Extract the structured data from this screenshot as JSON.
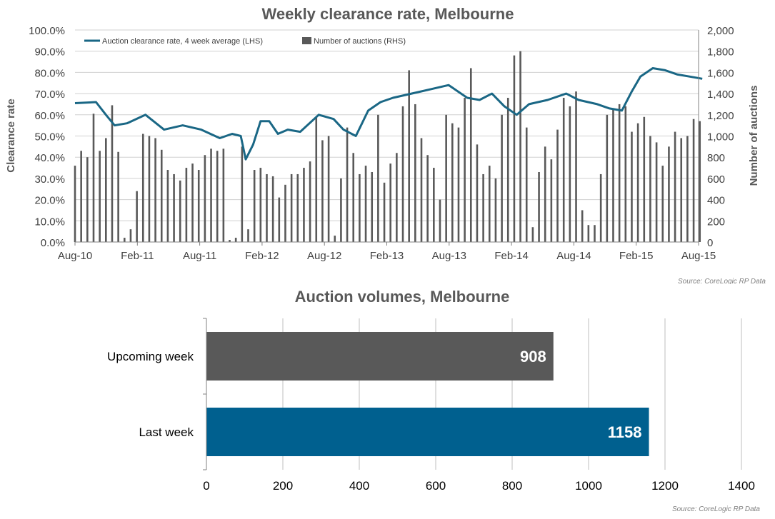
{
  "chart_data": [
    {
      "type": "bar",
      "title": "Weekly clearance rate, Melbourne",
      "ylabel": "Clearance rate",
      "y2label": "Number of auctions",
      "ylim": [
        0,
        100
      ],
      "y2lim": [
        0,
        2000
      ],
      "y_ticks": [
        "0.0%",
        "10.0%",
        "20.0%",
        "30.0%",
        "40.0%",
        "50.0%",
        "60.0%",
        "70.0%",
        "80.0%",
        "90.0%",
        "100.0%"
      ],
      "y2_ticks": [
        "0",
        "200",
        "400",
        "600",
        "800",
        "1,000",
        "1,200",
        "1,400",
        "1,600",
        "1,800",
        "2,000"
      ],
      "x_ticks": [
        "Aug-10",
        "Feb-11",
        "Aug-11",
        "Feb-12",
        "Aug-12",
        "Feb-13",
        "Aug-13",
        "Feb-14",
        "Aug-14",
        "Feb-15",
        "Aug-15"
      ],
      "grid": true,
      "legend": "top-left",
      "source": "Source: CoreLogic RP Data",
      "colors": {
        "line": "#1a6785",
        "bars": "#595959"
      },
      "series": [
        {
          "name": "Auction clearance rate, 4 week average (LHS)",
          "type": "line",
          "axis": "left",
          "x": [
            2010.58,
            2010.75,
            2010.83,
            2010.9,
            2011.0,
            2011.15,
            2011.3,
            2011.45,
            2011.6,
            2011.75,
            2011.85,
            2011.92,
            2011.96,
            2012.02,
            2012.08,
            2012.15,
            2012.22,
            2012.3,
            2012.4,
            2012.55,
            2012.67,
            2012.75,
            2012.85,
            2012.95,
            2013.05,
            2013.15,
            2013.3,
            2013.45,
            2013.6,
            2013.75,
            2013.85,
            2013.95,
            2014.05,
            2014.15,
            2014.25,
            2014.4,
            2014.55,
            2014.65,
            2014.8,
            2014.9,
            2015.0,
            2015.08,
            2015.15,
            2015.25,
            2015.35,
            2015.45,
            2015.55,
            2015.65
          ],
          "values": [
            65.5,
            66,
            60,
            55,
            56,
            60,
            53,
            55,
            53,
            49,
            51,
            50,
            39,
            46,
            57,
            57,
            51,
            53,
            52,
            60,
            58,
            53,
            50,
            62,
            66,
            68,
            70,
            72,
            74,
            68,
            67,
            70,
            64,
            60,
            65,
            67,
            70,
            67,
            65,
            63,
            62,
            71,
            78,
            82,
            81,
            79,
            78,
            77
          ]
        },
        {
          "name": "Number of auctions (RHS)",
          "type": "bar",
          "axis": "right",
          "x": [
            2010.58,
            2010.63,
            2010.68,
            2010.73,
            2010.78,
            2010.83,
            2010.88,
            2010.93,
            2010.98,
            2011.03,
            2011.08,
            2011.13,
            2011.18,
            2011.23,
            2011.28,
            2011.33,
            2011.38,
            2011.43,
            2011.48,
            2011.53,
            2011.58,
            2011.63,
            2011.68,
            2011.73,
            2011.78,
            2011.83,
            2011.88,
            2011.93,
            2011.98,
            2012.03,
            2012.08,
            2012.13,
            2012.18,
            2012.23,
            2012.28,
            2012.33,
            2012.38,
            2012.43,
            2012.48,
            2012.53,
            2012.58,
            2012.63,
            2012.68,
            2012.73,
            2012.78,
            2012.83,
            2012.88,
            2012.93,
            2012.98,
            2013.03,
            2013.08,
            2013.13,
            2013.18,
            2013.23,
            2013.28,
            2013.33,
            2013.38,
            2013.43,
            2013.48,
            2013.53,
            2013.58,
            2013.63,
            2013.68,
            2013.73,
            2013.78,
            2013.83,
            2013.88,
            2013.93,
            2013.98,
            2014.03,
            2014.08,
            2014.13,
            2014.18,
            2014.23,
            2014.28,
            2014.33,
            2014.38,
            2014.43,
            2014.48,
            2014.53,
            2014.58,
            2014.63,
            2014.68,
            2014.73,
            2014.78,
            2014.83,
            2014.88,
            2014.93,
            2014.98,
            2015.03,
            2015.08,
            2015.13,
            2015.18,
            2015.23,
            2015.28,
            2015.33,
            2015.38,
            2015.43,
            2015.48,
            2015.53,
            2015.58,
            2015.63
          ],
          "values": [
            720,
            860,
            800,
            1210,
            860,
            980,
            1290,
            850,
            40,
            120,
            480,
            1020,
            1000,
            980,
            870,
            680,
            640,
            580,
            700,
            740,
            680,
            820,
            880,
            860,
            880,
            20,
            40,
            900,
            120,
            680,
            700,
            640,
            620,
            420,
            540,
            640,
            640,
            700,
            760,
            1180,
            960,
            1000,
            60,
            600,
            1080,
            840,
            640,
            720,
            660,
            1200,
            560,
            740,
            840,
            1280,
            1620,
            1300,
            980,
            820,
            700,
            400,
            1200,
            1120,
            1080,
            1360,
            1640,
            920,
            640,
            720,
            600,
            1200,
            1360,
            1760,
            1800,
            1080,
            140,
            660,
            900,
            780,
            1060,
            1360,
            1280,
            1420,
            300,
            160,
            160,
            640,
            1200,
            1260,
            1300,
            1280,
            1040,
            1120,
            1180,
            1000,
            940,
            720,
            900,
            1040,
            980,
            1000,
            1160,
            1140
          ]
        }
      ]
    },
    {
      "type": "bar",
      "orientation": "horizontal",
      "title": "Auction volumes, Melbourne",
      "categories": [
        "Upcoming week",
        "Last week"
      ],
      "values": [
        908,
        1158
      ],
      "data_labels": [
        "908",
        "1158"
      ],
      "xlim": [
        0,
        1400
      ],
      "x_ticks": [
        "0",
        "200",
        "400",
        "600",
        "800",
        "1000",
        "1200",
        "1400"
      ],
      "grid": true,
      "source": "Source: CoreLogic RP Data",
      "colors": [
        "#595959",
        "#00608f"
      ]
    }
  ]
}
